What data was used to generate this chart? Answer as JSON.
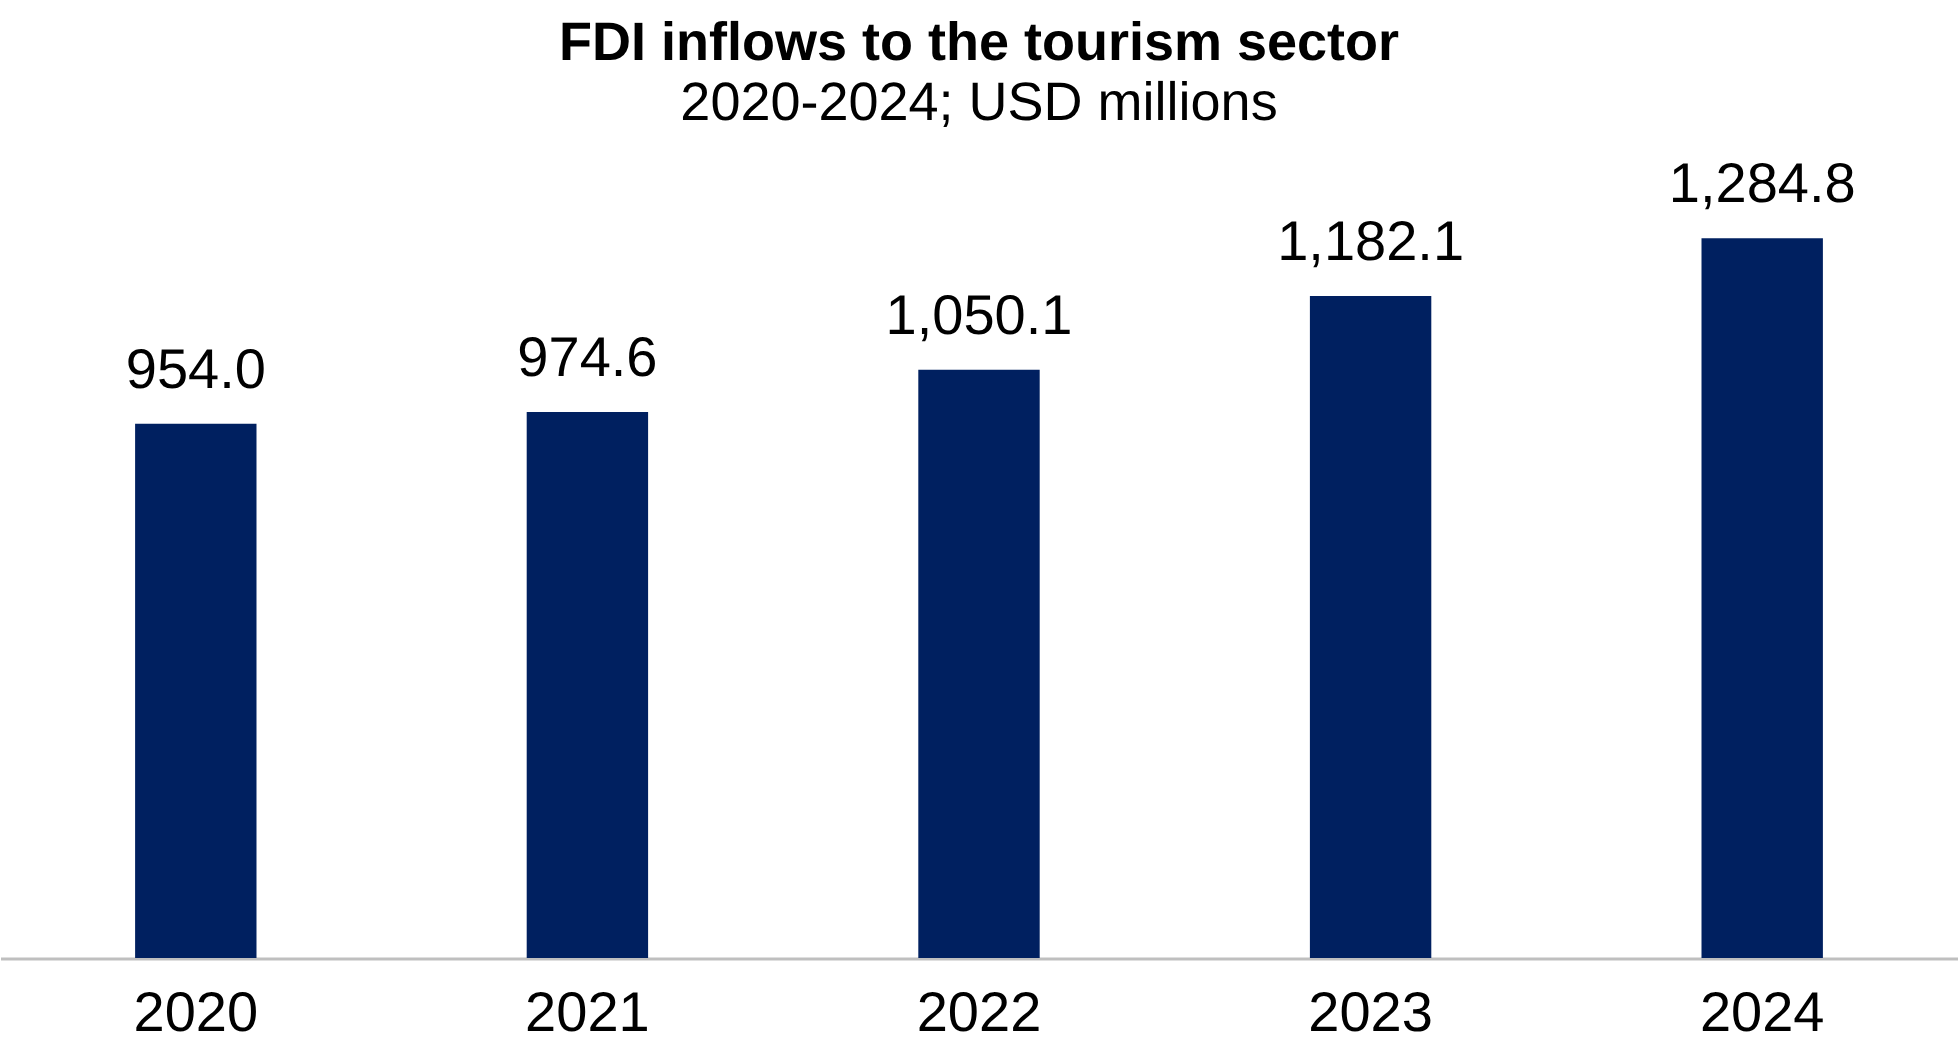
{
  "chart_data": {
    "type": "bar",
    "title": "FDI inflows to the tourism sector",
    "subtitle": "2020-2024; USD millions",
    "categories": [
      "2020",
      "2021",
      "2022",
      "2023",
      "2024"
    ],
    "values": [
      954.0,
      974.6,
      1050.1,
      1182.1,
      1284.8
    ],
    "value_labels": [
      "954.0",
      "974.6",
      "1,050.1",
      "1,182.1",
      "1,284.8"
    ],
    "color": "#002060",
    "grid": false,
    "tick_labels": "x"
  }
}
